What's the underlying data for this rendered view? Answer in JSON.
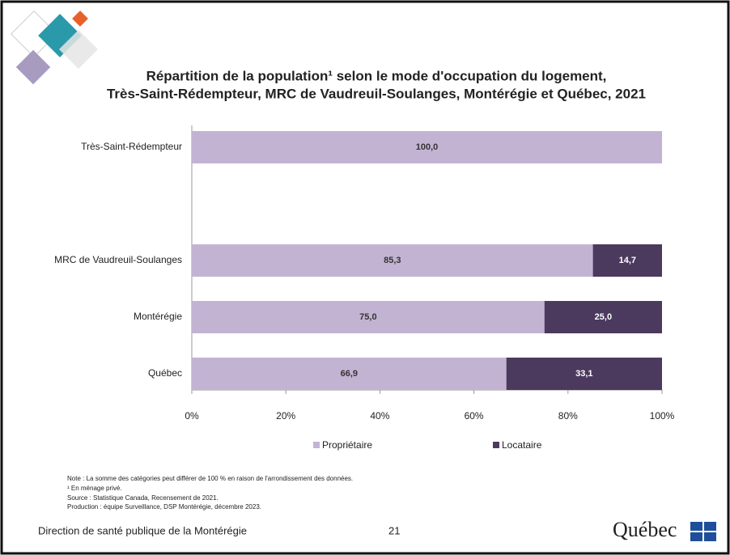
{
  "chart_data": {
    "type": "stacked-bar-horizontal",
    "title": [
      "Répartition de la population¹ selon le mode d'occupation du logement,",
      "Très-Saint-Rédempteur, MRC de Vaudreuil-Soulanges, Montérégie et Québec, 2021"
    ],
    "categories": [
      "Très-Saint-Rédempteur",
      null,
      "MRC de Vaudreuil-Soulanges",
      "Montérégie",
      "Québec"
    ],
    "series": [
      {
        "name": "Propriétaire",
        "color": "#c3b3d3",
        "label_color": "#333333",
        "values": [
          100,
          null,
          85.3,
          75,
          66.9
        ],
        "value_labels": [
          "100,0",
          null,
          "85,3",
          "75,0",
          "66,9"
        ]
      },
      {
        "name": "Locataire",
        "color": "#4b3a5e",
        "label_color": "#ffffff",
        "values": [
          null,
          null,
          14.7,
          25,
          33.1
        ],
        "value_labels": [
          null,
          null,
          "14,7",
          "25,0",
          "33,1"
        ]
      }
    ],
    "xlim": [
      0,
      100
    ],
    "xticks": [
      {
        "value": 0,
        "label": "0%"
      },
      {
        "value": 20,
        "label": "20%"
      },
      {
        "value": 40,
        "label": "40%"
      },
      {
        "value": 60,
        "label": "60%"
      },
      {
        "value": 80,
        "label": "80%"
      },
      {
        "value": 100,
        "label": "100%"
      }
    ],
    "legend": "bottom"
  },
  "notes": [
    "Note : La somme des catégories peut différer de 100 % en raison de l'arrondissement des données.",
    "¹ En ménage privé.",
    "Source : Statistique Canada, Recensement de 2021.",
    "Production : équipe Surveillance, DSP Montérégie, décembre 2023."
  ],
  "footer": {
    "organization": "Direction de santé publique de la Montérégie",
    "page": "21",
    "logo": "Québec"
  }
}
